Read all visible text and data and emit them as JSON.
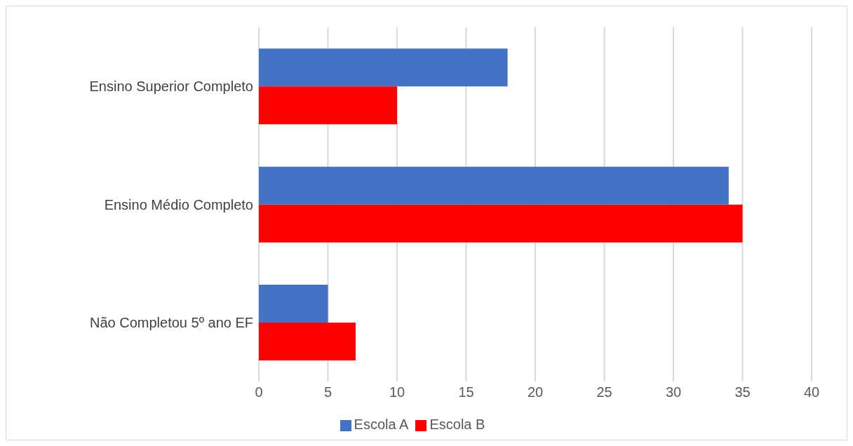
{
  "chart_data": {
    "type": "bar",
    "orientation": "horizontal",
    "categories": [
      "Ensino Superior Completo",
      "Ensino Médio Completo",
      "Não Completou 5º ano EF"
    ],
    "series": [
      {
        "name": "Escola A",
        "color": "#4472c4",
        "values": [
          18,
          34,
          5
        ]
      },
      {
        "name": "Escola B",
        "color": "#ff0000",
        "values": [
          10,
          35,
          7
        ]
      }
    ],
    "xlim": [
      0,
      40
    ],
    "xticks": [
      0,
      5,
      10,
      15,
      20,
      25,
      30,
      35,
      40
    ],
    "grid": "x",
    "legend": "bottom"
  }
}
